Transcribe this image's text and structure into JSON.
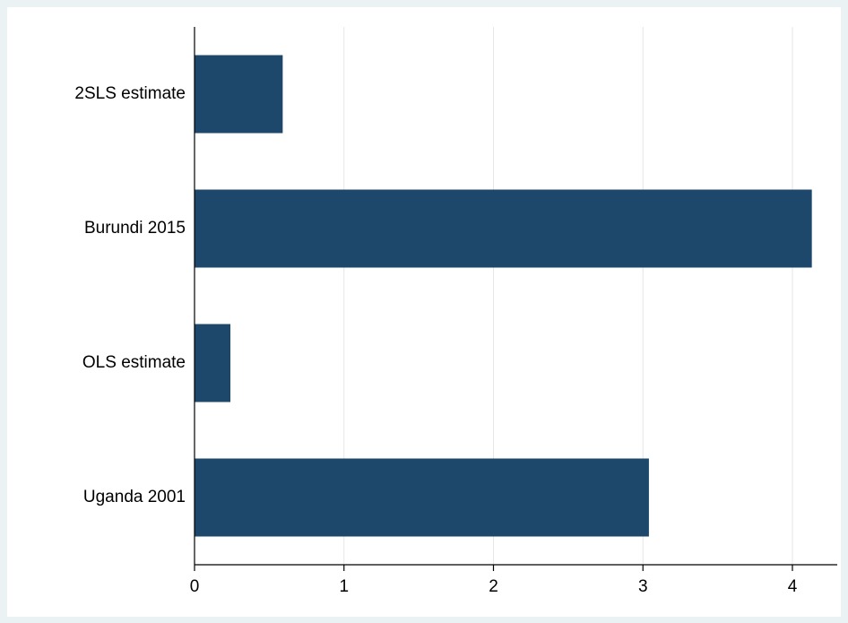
{
  "chart_data": {
    "type": "bar",
    "orientation": "horizontal",
    "categories": [
      "2SLS estimate",
      "Burundi 2015",
      "OLS estimate",
      "Uganda 2001"
    ],
    "values": [
      0.59,
      4.13,
      0.24,
      3.04
    ],
    "xlim": [
      0,
      4.3
    ],
    "xticks": [
      0,
      1,
      2,
      3,
      4
    ],
    "grid": true,
    "colors": {
      "bar": "#1d476b",
      "plot_bg": "#ffffff",
      "page_bg": "#eaf2f3"
    }
  }
}
